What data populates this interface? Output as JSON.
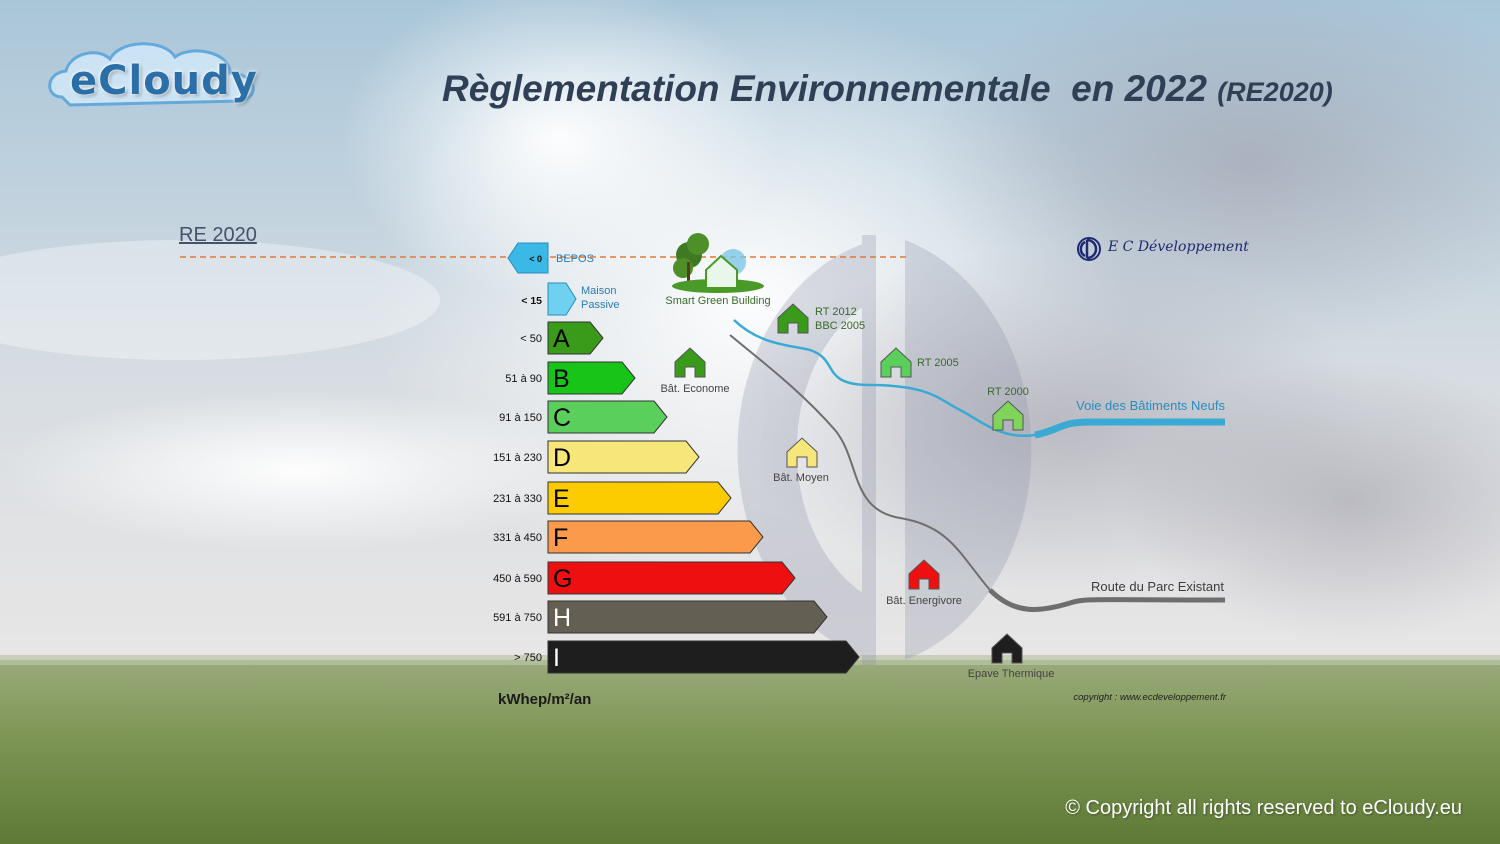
{
  "header": {
    "logo_text": "eCloudy",
    "title_main": "Règlementation Environnementale  en 2022 ",
    "title_sub": "(RE2020)"
  },
  "section_label": "RE 2020",
  "partner_logo_text": "E C Développement",
  "footer": {
    "copyright": "© Copyright all rights reserved to eCloudy.eu",
    "source": "copyright : www.ecdeveloppement.fr"
  },
  "energy_scale": {
    "unit": "kWhep/m²/an",
    "special": [
      {
        "label": "BEPOS",
        "threshold": "< 0",
        "color": "#3ab8e6"
      },
      {
        "label": "Maison\nPassive",
        "threshold": "< 15",
        "color": "#6fd0f0"
      }
    ],
    "classes": [
      {
        "letter": "A",
        "range": "< 50",
        "color": "#3a9a1a",
        "text_color": "#000000"
      },
      {
        "letter": "B",
        "range": "51 à 90",
        "color": "#18c418",
        "text_color": "#000000"
      },
      {
        "letter": "C",
        "range": "91 à 150",
        "color": "#5bcf5b",
        "text_color": "#000000"
      },
      {
        "letter": "D",
        "range": "151 à 230",
        "color": "#f7e67a",
        "text_color": "#000000"
      },
      {
        "letter": "E",
        "range": "231 à 330",
        "color": "#fccb00",
        "text_color": "#000000"
      },
      {
        "letter": "F",
        "range": "331 à 450",
        "color": "#fa9a4a",
        "text_color": "#000000"
      },
      {
        "letter": "G",
        "range": "450 à 590",
        "color": "#ee1010",
        "text_color": "#000000"
      },
      {
        "letter": "H",
        "range": "591 à 750",
        "color": "#635f52",
        "text_color": "#ffffff"
      },
      {
        "letter": "I",
        "range": "> 750",
        "color": "#1e1e1e",
        "text_color": "#ffffff"
      }
    ]
  },
  "markers": [
    {
      "label": "Smart Green Building",
      "color": "#e9f6ea"
    },
    {
      "label": "RT 2012\nBBC 2005",
      "color": "#3a9a1a"
    },
    {
      "label": "Bât. Econome",
      "color": "#3a9a1a"
    },
    {
      "label": "RT 2005",
      "color": "#5bcf5b"
    },
    {
      "label": "RT 2000",
      "color": "#80d45a"
    },
    {
      "label": "Bât. Moyen",
      "color": "#f7e67a"
    },
    {
      "label": "Bât. Energivore",
      "color": "#ee1010"
    },
    {
      "label": "Epave Thermique",
      "color": "#1e1e1e"
    }
  ],
  "paths": {
    "new_buildings": {
      "label": "Voie des Bâtiments Neufs",
      "color": "#3aaad4"
    },
    "existing": {
      "label": "Route du Parc Existant",
      "color": "#6e6e6e"
    }
  },
  "colors": {
    "title": "#2f3f55",
    "reference_line": "#e07a36",
    "sky_top": "#9fc2d8",
    "grass": "#6d8a44"
  }
}
